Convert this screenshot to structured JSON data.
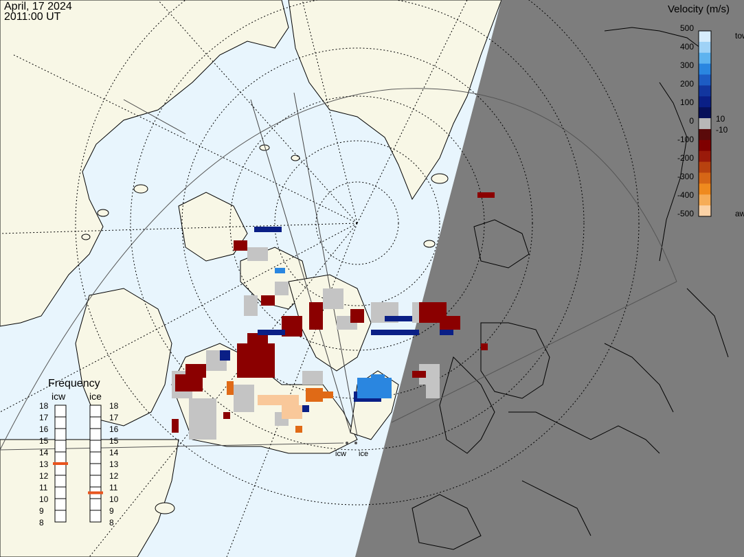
{
  "header": {
    "date": "April, 17 2024",
    "time": "2011:00 UT"
  },
  "colorbar": {
    "title": "Velocity (m/s)",
    "ticks": [
      "500",
      "400",
      "300",
      "200",
      "100",
      "0",
      "-100",
      "-200",
      "-300",
      "-400",
      "-500"
    ],
    "toward_label": "toward",
    "away_label": "away",
    "pos_gap_label": "10",
    "neg_gap_label": "-10",
    "colors": [
      "#d6ecfb",
      "#9fd2f6",
      "#5eb3ef",
      "#2a86e0",
      "#1d5cc4",
      "#12369f",
      "#0a1f86",
      "#07105a",
      "#b8b8b8",
      "#5a0a0a",
      "#7f0000",
      "#9a1a0a",
      "#b8420f",
      "#d66616",
      "#ef8a1e",
      "#f6ad58",
      "#fbd2a6"
    ]
  },
  "frequency": {
    "title": "Frequency",
    "radars": [
      {
        "name": "icw",
        "marker_mhz": 13
      },
      {
        "name": "ice",
        "marker_mhz": 10.5
      }
    ],
    "scale": [
      "18",
      "17",
      "16",
      "15",
      "14",
      "13",
      "12",
      "11",
      "10",
      "9",
      "8"
    ]
  },
  "radar_sites": [
    "icw",
    "ice"
  ],
  "map": {
    "land_color": "#f8f7e6",
    "ocean_color": "#e8f5fd",
    "night_color": "#7d7d7d",
    "coast_color": "#000000",
    "grid_color": "#000000"
  }
}
